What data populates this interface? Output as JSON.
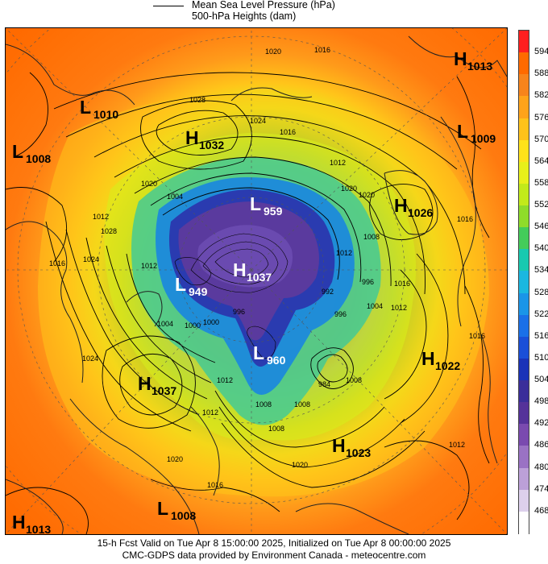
{
  "legend": {
    "pressure_label": "Mean Sea Level Pressure (hPa)",
    "heights_label": "500-hPa Heights (dam)"
  },
  "colorbar": {
    "levels": [
      "594",
      "588",
      "582",
      "576",
      "570",
      "564",
      "558",
      "552",
      "546",
      "540",
      "534",
      "528",
      "522",
      "516",
      "510",
      "504",
      "498",
      "492",
      "486",
      "480",
      "474",
      "468"
    ],
    "colors": [
      "#ff1f1f",
      "#ff6a00",
      "#f7841c",
      "#ffa31a",
      "#ffc21a",
      "#ffe21a",
      "#e8f01a",
      "#c2ea1a",
      "#8fdc2a",
      "#44cc5a",
      "#18c9b0",
      "#1ab7e0",
      "#1a95e8",
      "#1a70e8",
      "#1a4fd8",
      "#1a33b8",
      "#3a2e9a",
      "#55329a",
      "#7a4aaf",
      "#9a72c4",
      "#bca0d8",
      "#ddd0ec",
      "#ffffff"
    ]
  },
  "centers": [
    {
      "type": "H",
      "value": "1013",
      "color": "#000000"
    },
    {
      "type": "L",
      "value": "1010",
      "color": "#000000"
    },
    {
      "type": "H",
      "value": "1032",
      "color": "#000000"
    },
    {
      "type": "L",
      "value": "1009",
      "color": "#000000"
    },
    {
      "type": "L",
      "value": "1008",
      "color": "#000000"
    },
    {
      "type": "H",
      "value": "1026",
      "color": "#000000"
    },
    {
      "type": "L",
      "value": "959",
      "color": "#ffffff"
    },
    {
      "type": "H",
      "value": "1037",
      "color": "#ffffff"
    },
    {
      "type": "L",
      "value": "949",
      "color": "#ffffff"
    },
    {
      "type": "L",
      "value": "960",
      "color": "#ffffff"
    },
    {
      "type": "H",
      "value": "1022",
      "color": "#000000"
    },
    {
      "type": "H",
      "value": "1037",
      "color": "#000000"
    },
    {
      "type": "H",
      "value": "1023",
      "color": "#000000"
    },
    {
      "type": "L",
      "value": "1008",
      "color": "#000000"
    },
    {
      "type": "H",
      "value": "1013",
      "color": "#000000"
    }
  ],
  "isobar_labels": [
    "1020",
    "1016",
    "1028",
    "1024",
    "1016",
    "1012",
    "1020",
    "1020",
    "1004",
    "1012",
    "1020",
    "1016",
    "1024",
    "1028",
    "1012",
    "1008",
    "1012",
    "996",
    "992",
    "1004",
    "996",
    "1000",
    "1004",
    "1012",
    "1016",
    "1000",
    "996",
    "1012",
    "1012",
    "1008",
    "1008",
    "1020",
    "1016",
    "1024",
    "1020",
    "1008",
    "984",
    "1008",
    "1016",
    "1012",
    "1016"
  ],
  "footer": {
    "line1": "15-h Fcst Valid on Tue Apr  8 15:00:00 2025, Initialized on Tue Apr  8 00:00:00 2025",
    "line2": "CMC-GDPS data provided by Environment Canada - meteocentre.com"
  }
}
